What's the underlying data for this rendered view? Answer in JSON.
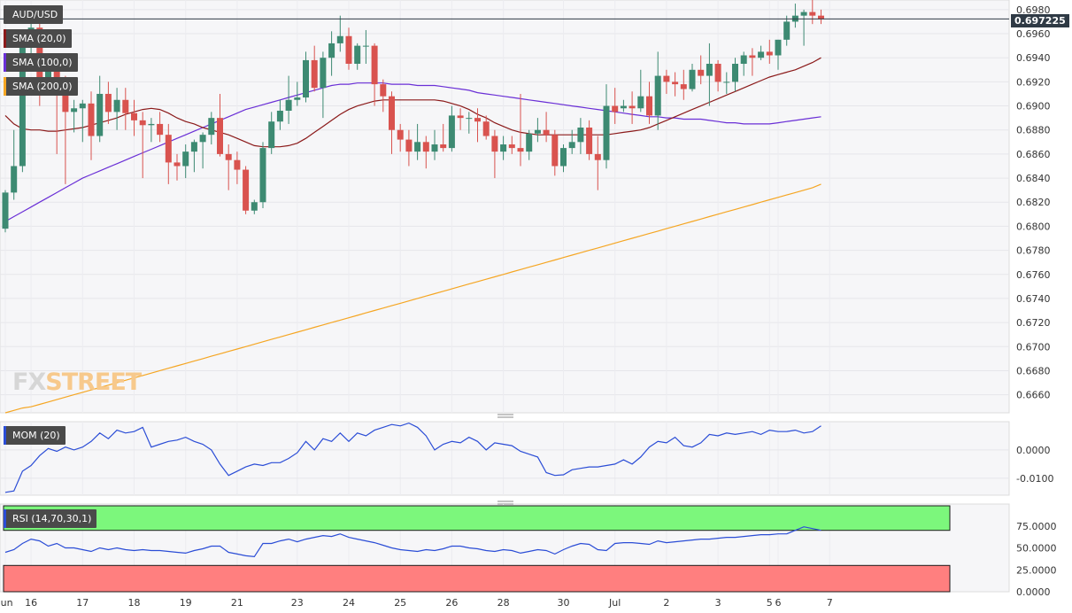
{
  "chart_data": {
    "type": "candlestick",
    "symbol": "AUD/USD",
    "last_price": "0.697225",
    "price_axis": {
      "ylim": [
        0.6645,
        0.6988
      ],
      "ticks": [
        "0.6980",
        "0.6960",
        "0.6940",
        "0.6920",
        "0.6900",
        "0.6880",
        "0.6860",
        "0.6840",
        "0.6820",
        "0.6800",
        "0.6780",
        "0.6760",
        "0.6740",
        "0.6720",
        "0.6700",
        "0.6680",
        "0.6660"
      ]
    },
    "x_axis": {
      "labels": [
        {
          "i": 0,
          "text": "Jun"
        },
        {
          "i": 3,
          "text": "16"
        },
        {
          "i": 9,
          "text": "17"
        },
        {
          "i": 15,
          "text": "18"
        },
        {
          "i": 21,
          "text": "19"
        },
        {
          "i": 27,
          "text": "21"
        },
        {
          "i": 34,
          "text": "23"
        },
        {
          "i": 40,
          "text": "24"
        },
        {
          "i": 46,
          "text": "25"
        },
        {
          "i": 52,
          "text": "26"
        },
        {
          "i": 58,
          "text": "28"
        },
        {
          "i": 65,
          "text": "30"
        },
        {
          "i": 71,
          "text": "Jul"
        },
        {
          "i": 77,
          "text": "2"
        },
        {
          "i": 83,
          "text": "3"
        },
        {
          "i": 89,
          "text": "5"
        },
        {
          "i": 90,
          "text": "6"
        },
        {
          "i": 96,
          "text": "7"
        }
      ]
    },
    "candles": [
      [
        0.6798,
        0.683,
        0.6795,
        0.6828
      ],
      [
        0.6828,
        0.688,
        0.6822,
        0.685
      ],
      [
        0.685,
        0.6955,
        0.6845,
        0.695
      ],
      [
        0.695,
        0.6982,
        0.6935,
        0.6965
      ],
      [
        0.6965,
        0.697,
        0.69,
        0.692
      ],
      [
        0.692,
        0.694,
        0.691,
        0.6935
      ],
      [
        0.6935,
        0.694,
        0.686,
        0.691
      ],
      [
        0.691,
        0.6925,
        0.6835,
        0.6895
      ],
      [
        0.6895,
        0.6905,
        0.6878,
        0.6898
      ],
      [
        0.6898,
        0.6905,
        0.687,
        0.6902
      ],
      [
        0.6902,
        0.6912,
        0.6855,
        0.6875
      ],
      [
        0.6875,
        0.6925,
        0.687,
        0.691
      ],
      [
        0.691,
        0.692,
        0.6885,
        0.6895
      ],
      [
        0.6895,
        0.6915,
        0.688,
        0.6905
      ],
      [
        0.6905,
        0.6915,
        0.688,
        0.6894
      ],
      [
        0.6894,
        0.6905,
        0.6875,
        0.6888
      ],
      [
        0.6888,
        0.6895,
        0.684,
        0.6884
      ],
      [
        0.6884,
        0.689,
        0.687,
        0.6885
      ],
      [
        0.6885,
        0.6895,
        0.687,
        0.6876
      ],
      [
        0.6876,
        0.6885,
        0.6835,
        0.6853
      ],
      [
        0.6853,
        0.686,
        0.6838,
        0.685
      ],
      [
        0.685,
        0.6868,
        0.684,
        0.6862
      ],
      [
        0.6862,
        0.6872,
        0.6845,
        0.687
      ],
      [
        0.687,
        0.6878,
        0.6848,
        0.6876
      ],
      [
        0.6876,
        0.6895,
        0.6868,
        0.689
      ],
      [
        0.689,
        0.691,
        0.6858,
        0.686
      ],
      [
        0.686,
        0.6868,
        0.683,
        0.6855
      ],
      [
        0.6855,
        0.6862,
        0.6835,
        0.6847
      ],
      [
        0.6847,
        0.685,
        0.681,
        0.6813
      ],
      [
        0.6813,
        0.6822,
        0.681,
        0.682
      ],
      [
        0.682,
        0.687,
        0.6815,
        0.6865
      ],
      [
        0.6865,
        0.6895,
        0.686,
        0.6887
      ],
      [
        0.6887,
        0.6905,
        0.688,
        0.6896
      ],
      [
        0.6896,
        0.6925,
        0.6885,
        0.6905
      ],
      [
        0.6905,
        0.692,
        0.69,
        0.6907
      ],
      [
        0.6907,
        0.6945,
        0.6903,
        0.6938
      ],
      [
        0.6938,
        0.695,
        0.6912,
        0.6915
      ],
      [
        0.6915,
        0.6945,
        0.689,
        0.694
      ],
      [
        0.694,
        0.6962,
        0.6925,
        0.6952
      ],
      [
        0.6952,
        0.6975,
        0.6945,
        0.6958
      ],
      [
        0.6958,
        0.6965,
        0.693,
        0.6935
      ],
      [
        0.6935,
        0.6952,
        0.693,
        0.695
      ],
      [
        0.695,
        0.6963,
        0.6935,
        0.695
      ],
      [
        0.695,
        0.6952,
        0.69,
        0.6918
      ],
      [
        0.6918,
        0.6922,
        0.6895,
        0.6908
      ],
      [
        0.6908,
        0.6912,
        0.686,
        0.688
      ],
      [
        0.688,
        0.6885,
        0.6862,
        0.6872
      ],
      [
        0.6872,
        0.688,
        0.685,
        0.6862
      ],
      [
        0.6862,
        0.6885,
        0.6855,
        0.687
      ],
      [
        0.687,
        0.6875,
        0.6848,
        0.6862
      ],
      [
        0.6862,
        0.688,
        0.6855,
        0.6868
      ],
      [
        0.6868,
        0.6885,
        0.6862,
        0.6865
      ],
      [
        0.6865,
        0.69,
        0.6862,
        0.6892
      ],
      [
        0.6892,
        0.6898,
        0.688,
        0.689
      ],
      [
        0.689,
        0.6895,
        0.6877,
        0.689
      ],
      [
        0.689,
        0.6898,
        0.687,
        0.6887
      ],
      [
        0.6887,
        0.6892,
        0.6872,
        0.6875
      ],
      [
        0.6875,
        0.688,
        0.684,
        0.6862
      ],
      [
        0.6862,
        0.6875,
        0.6855,
        0.6868
      ],
      [
        0.6868,
        0.6875,
        0.686,
        0.6865
      ],
      [
        0.6865,
        0.691,
        0.685,
        0.6862
      ],
      [
        0.6862,
        0.688,
        0.6855,
        0.6877
      ],
      [
        0.6877,
        0.689,
        0.687,
        0.688
      ],
      [
        0.688,
        0.6895,
        0.687,
        0.6876
      ],
      [
        0.6876,
        0.688,
        0.6842,
        0.685
      ],
      [
        0.685,
        0.6868,
        0.6845,
        0.6865
      ],
      [
        0.6865,
        0.688,
        0.686,
        0.687
      ],
      [
        0.687,
        0.689,
        0.686,
        0.6882
      ],
      [
        0.6882,
        0.6888,
        0.6855,
        0.686
      ],
      [
        0.686,
        0.6875,
        0.683,
        0.6855
      ],
      [
        0.6855,
        0.6918,
        0.6848,
        0.69
      ],
      [
        0.69,
        0.6915,
        0.6885,
        0.6895
      ],
      [
        0.6898,
        0.6905,
        0.6895,
        0.69
      ],
      [
        0.69,
        0.6912,
        0.6885,
        0.6898
      ],
      [
        0.6898,
        0.693,
        0.6895,
        0.6908
      ],
      [
        0.6908,
        0.692,
        0.6885,
        0.6892
      ],
      [
        0.6892,
        0.6945,
        0.688,
        0.6925
      ],
      [
        0.6925,
        0.693,
        0.691,
        0.692
      ],
      [
        0.692,
        0.6928,
        0.6908,
        0.6918
      ],
      [
        0.6918,
        0.693,
        0.6905,
        0.6914
      ],
      [
        0.6914,
        0.6935,
        0.6912,
        0.693
      ],
      [
        0.693,
        0.6942,
        0.6918,
        0.6925
      ],
      [
        0.6925,
        0.6952,
        0.69,
        0.6935
      ],
      [
        0.6935,
        0.6938,
        0.6912,
        0.692
      ],
      [
        0.692,
        0.6928,
        0.691,
        0.692
      ],
      [
        0.692,
        0.694,
        0.6912,
        0.6935
      ],
      [
        0.6935,
        0.6945,
        0.6925,
        0.6942
      ],
      [
        0.6942,
        0.6948,
        0.6925,
        0.694
      ],
      [
        0.694,
        0.695,
        0.6938,
        0.6945
      ],
      [
        0.6945,
        0.6955,
        0.6935,
        0.6942
      ],
      [
        0.6942,
        0.6955,
        0.693,
        0.6955
      ],
      [
        0.6955,
        0.6975,
        0.695,
        0.697
      ],
      [
        0.697,
        0.6985,
        0.6965,
        0.6975
      ],
      [
        0.6975,
        0.698,
        0.695,
        0.6978
      ],
      [
        0.6978,
        0.699,
        0.6968,
        0.6975
      ],
      [
        0.6975,
        0.698,
        0.6968,
        0.6972
      ]
    ],
    "sma_20": [
      0.6892,
      0.6885,
      0.6881,
      0.688,
      0.688,
      0.6879,
      0.6879,
      0.688,
      0.6881,
      0.6882,
      0.6884,
      0.6886,
      0.6888,
      0.689,
      0.6893,
      0.6895,
      0.6897,
      0.6898,
      0.6897,
      0.6894,
      0.689,
      0.6887,
      0.6885,
      0.6882,
      0.688,
      0.6878,
      0.6876,
      0.6873,
      0.687,
      0.6867,
      0.6866,
      0.6866,
      0.6866,
      0.6867,
      0.6869,
      0.6873,
      0.6878,
      0.6883,
      0.6888,
      0.6893,
      0.6897,
      0.69,
      0.6902,
      0.6904,
      0.6905,
      0.6905,
      0.6905,
      0.6905,
      0.6905,
      0.6905,
      0.6905,
      0.6904,
      0.6902,
      0.69,
      0.6897,
      0.6893,
      0.689,
      0.6886,
      0.6883,
      0.688,
      0.6878,
      0.6877,
      0.6876,
      0.6876,
      0.6876,
      0.6876,
      0.6876,
      0.6876,
      0.6876,
      0.6876,
      0.6876,
      0.6877,
      0.6878,
      0.6879,
      0.688,
      0.6882,
      0.6885,
      0.6888,
      0.6891,
      0.6894,
      0.6897,
      0.69,
      0.6903,
      0.6906,
      0.6909,
      0.6912,
      0.6915,
      0.6918,
      0.6921,
      0.6924,
      0.6926,
      0.6928,
      0.693,
      0.6933,
      0.6936,
      0.694
    ],
    "sma_100": [
      0.6804,
      0.6808,
      0.6812,
      0.6816,
      0.682,
      0.6824,
      0.6828,
      0.6832,
      0.6836,
      0.684,
      0.6843,
      0.6846,
      0.6849,
      0.6852,
      0.6855,
      0.6858,
      0.6861,
      0.6864,
      0.6867,
      0.687,
      0.6873,
      0.6876,
      0.6879,
      0.6882,
      0.6885,
      0.6888,
      0.6891,
      0.6894,
      0.6897,
      0.6899,
      0.6901,
      0.6903,
      0.6905,
      0.6907,
      0.6909,
      0.6911,
      0.6913,
      0.6915,
      0.6917,
      0.6918,
      0.6918,
      0.6919,
      0.6919,
      0.6919,
      0.6919,
      0.6918,
      0.6918,
      0.6918,
      0.6917,
      0.6917,
      0.6917,
      0.6916,
      0.6915,
      0.6914,
      0.6913,
      0.6911,
      0.691,
      0.6909,
      0.6908,
      0.6907,
      0.6906,
      0.6905,
      0.6904,
      0.6903,
      0.6902,
      0.6901,
      0.69,
      0.6899,
      0.6898,
      0.6897,
      0.6896,
      0.6895,
      0.6894,
      0.6893,
      0.6892,
      0.6891,
      0.6891,
      0.689,
      0.689,
      0.6889,
      0.6889,
      0.6889,
      0.6888,
      0.6887,
      0.6886,
      0.6886,
      0.6885,
      0.6885,
      0.6885,
      0.6885,
      0.6886,
      0.6887,
      0.6888,
      0.6889,
      0.689,
      0.6891
    ],
    "sma_200": [
      0.6645,
      0.6647,
      0.6649,
      0.665,
      0.6652,
      0.6654,
      0.6656,
      0.6658,
      0.666,
      0.6662,
      0.6664,
      0.6666,
      0.6668,
      0.667,
      0.6672,
      0.6674,
      0.6676,
      0.6678,
      0.668,
      0.6682,
      0.6684,
      0.6686,
      0.6688,
      0.669,
      0.6692,
      0.6694,
      0.6696,
      0.6698,
      0.67,
      0.6702,
      0.6704,
      0.6706,
      0.6708,
      0.671,
      0.6712,
      0.6714,
      0.6716,
      0.6718,
      0.672,
      0.6722,
      0.6724,
      0.6726,
      0.6728,
      0.673,
      0.6732,
      0.6734,
      0.6736,
      0.6738,
      0.674,
      0.6742,
      0.6744,
      0.6746,
      0.6748,
      0.675,
      0.6752,
      0.6754,
      0.6756,
      0.6758,
      0.676,
      0.6762,
      0.6764,
      0.6766,
      0.6768,
      0.677,
      0.6772,
      0.6774,
      0.6776,
      0.6778,
      0.678,
      0.6782,
      0.6784,
      0.6786,
      0.6788,
      0.679,
      0.6792,
      0.6794,
      0.6796,
      0.6798,
      0.68,
      0.6802,
      0.6804,
      0.6806,
      0.6808,
      0.681,
      0.6812,
      0.6814,
      0.6816,
      0.6818,
      0.682,
      0.6822,
      0.6824,
      0.6826,
      0.6828,
      0.683,
      0.6832,
      0.6835
    ],
    "mom": {
      "label": "MOM (20)",
      "ylim": [
        -0.016,
        0.01
      ],
      "ticks": [
        "0.0000",
        "-0.0100"
      ],
      "values": [
        -0.015,
        -0.0145,
        -0.0075,
        -0.0055,
        -0.002,
        0.0005,
        -0.0005,
        0.001,
        0.0,
        0.001,
        0.003,
        0.006,
        0.004,
        0.007,
        0.006,
        0.0065,
        0.008,
        0.001,
        0.002,
        0.003,
        0.0035,
        0.0045,
        0.003,
        0.002,
        0.0,
        -0.005,
        -0.009,
        -0.0075,
        -0.006,
        -0.005,
        -0.0055,
        -0.0045,
        -0.0045,
        -0.003,
        -0.001,
        0.003,
        0.0,
        0.004,
        0.003,
        0.006,
        0.003,
        0.006,
        0.005,
        0.007,
        0.008,
        0.009,
        0.0085,
        0.0095,
        0.008,
        0.005,
        0.0,
        0.002,
        0.003,
        0.0025,
        0.0045,
        0.003,
        0.0,
        0.0025,
        0.002,
        0.0015,
        -0.0005,
        -0.0015,
        -0.0025,
        -0.008,
        -0.009,
        -0.0088,
        -0.007,
        -0.0065,
        -0.006,
        -0.006,
        -0.0055,
        -0.005,
        -0.0035,
        -0.005,
        -0.0025,
        0.001,
        0.003,
        0.0025,
        0.0045,
        0.0015,
        0.001,
        0.0025,
        0.0055,
        0.005,
        0.006,
        0.0055,
        0.006,
        0.0065,
        0.0055,
        0.007,
        0.0065,
        0.0065,
        0.007,
        0.006,
        0.0065,
        0.0085
      ],
      "ticks_values": [
        0.0,
        -0.01
      ]
    },
    "rsi": {
      "label": "RSI (14,70,30,1)",
      "ylim": [
        0,
        100
      ],
      "upper": 70,
      "lower": 30,
      "ticks": [
        "75.0000",
        "50.0000",
        "25.0000",
        "0.0000"
      ],
      "ticks_values": [
        75,
        50,
        25,
        0
      ],
      "values": [
        45,
        48,
        55,
        60,
        58,
        52,
        55,
        50,
        50,
        48,
        46,
        50,
        48,
        50,
        48,
        47,
        48,
        47,
        47,
        46,
        45,
        44,
        47,
        49,
        52,
        52,
        45,
        43,
        41,
        40,
        55,
        55,
        58,
        60,
        57,
        60,
        62,
        64,
        63,
        66,
        62,
        60,
        58,
        56,
        53,
        50,
        48,
        47,
        46,
        48,
        47,
        49,
        52,
        52,
        50,
        49,
        47,
        46,
        48,
        47,
        44,
        46,
        48,
        47,
        43,
        48,
        52,
        55,
        54,
        48,
        47,
        55,
        56,
        56,
        55,
        54,
        58,
        56,
        57,
        58,
        59,
        60,
        60,
        61,
        62,
        62,
        63,
        64,
        65,
        65,
        66,
        66,
        70,
        74,
        72,
        70
      ]
    },
    "sma_labels": [
      "SMA (20,0)",
      "SMA (100,0)",
      "SMA (200,0)"
    ],
    "colors": {
      "up": "#3d8a72",
      "down": "#d9534f",
      "sma20": "#8b1a1a",
      "sma100": "#6a2fd6",
      "sma200": "#f5a623",
      "mom": "#2b4dd6",
      "rsi": "#2b4dd6",
      "rsi_over": "#7cf77c",
      "rsi_under": "#ff7f7f"
    }
  },
  "logo": {
    "part1": "FX",
    "part2": "STREET"
  }
}
